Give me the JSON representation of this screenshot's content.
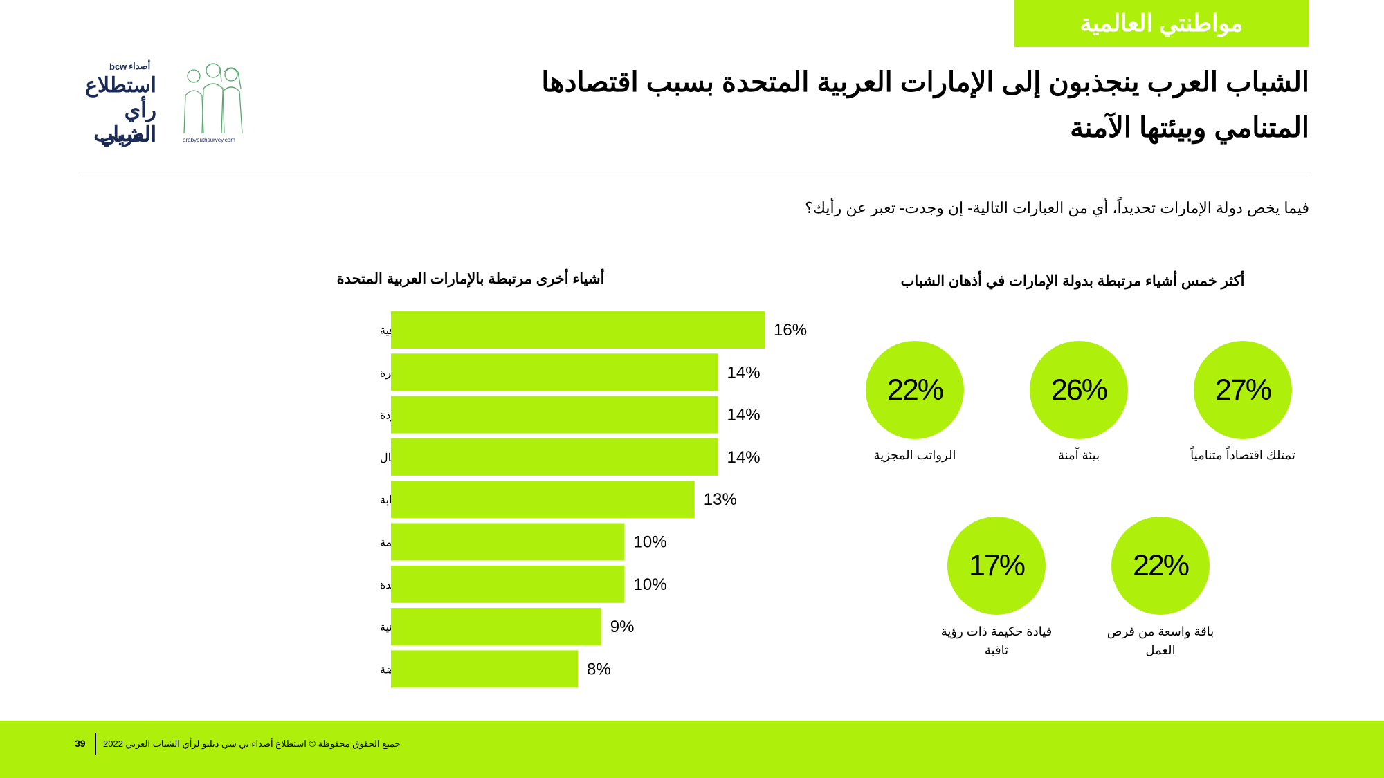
{
  "header": {
    "section_tab": "مواطنتي العالمية",
    "title_line1": "الشباب العرب ينجذبون إلى الإمارات العربية المتحدة بسبب اقتصادها",
    "title_line2": "المتنامي وبيئتها الآمنة"
  },
  "logo": {
    "bcw": "bcw",
    "brand": "أصداء",
    "line1": "استطلاع",
    "line2": "رأي الشباب",
    "line3": "العربي",
    "url": "arabyouthsurvey.com"
  },
  "question": "فيما يخص دولة الإمارات تحديداً، أي من العبارات التالية- إن وجدت- تعبر عن رأيك؟",
  "colors": {
    "accent": "#aef00c",
    "text": "#000000"
  },
  "chart_data": [
    {
      "type": "bar",
      "orientation": "horizontal",
      "title": "أشياء أخرى مرتبطة بالإمارات العربية المتحدة",
      "categories": [
        "احترام التقاليد الثقافية",
        "وجهة مميزة لتكوين أسرة",
        "منظومة تعليمية عالية الجودة",
        "إجراءات سهلة لبدء الأعمال",
        "احتضان الوافدين برحابة",
        "سهولة الحصول على تأشيرة إقامة",
        "سهولة الوصول إلى الرعاية الصحية والعلاجية الرائدة",
        "الإصلاحات القضائية والمدنية",
        "ضرائب منخفضة"
      ],
      "values": [
        16,
        14,
        14,
        14,
        13,
        10,
        10,
        9,
        8
      ],
      "labels": [
        "16%",
        "14%",
        "14%",
        "14%",
        "13%",
        "10%",
        "10%",
        "9%",
        "8%"
      ],
      "unit": "%",
      "grid": false
    },
    {
      "type": "bubble",
      "title": "أكثر خمس أشياء مرتبطة بدولة الإمارات في أذهان الشباب",
      "items": [
        {
          "label": "تمتلك اقتصاداً متنامياً",
          "value": 27,
          "text": "27%"
        },
        {
          "label": "بيئة آمنة",
          "value": 26,
          "text": "26%"
        },
        {
          "label": "الرواتب المجزية",
          "value": 22,
          "text": "22%"
        },
        {
          "label": "باقة واسعة من فرص العمل",
          "value": 22,
          "text": "22%"
        },
        {
          "label": "قيادة حكيمة ذات رؤية ثاقبة",
          "value": 17,
          "text": "17%"
        }
      ]
    }
  ],
  "footer": {
    "page_number": "39",
    "text": "جميع الحقوق محفوظة © استطلاع أصداء بي سي دبليو لرأي الشباب العربي 2022"
  }
}
